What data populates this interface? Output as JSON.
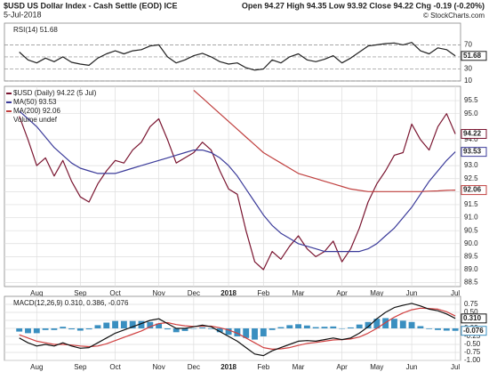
{
  "header": {
    "title": "$USD US Dollar Index - Cash Settle (EOD) ICE",
    "date": "5-Jul-2018",
    "quote": "Open 94.27 High 94.35 Low 93.92 Close 94.22 Chg -0.19 (-0.20%)",
    "credit": "© StockCharts.com"
  },
  "chart_data": [
    {
      "type": "line",
      "label": "RSI(14) 51.68",
      "xlim": [
        -1.7,
        50.6
      ],
      "ylim": [
        10,
        106
      ],
      "yticks": [
        10,
        30,
        50,
        70
      ],
      "grid": "dashed",
      "series": [
        {
          "color": "#222222",
          "end_box": true,
          "values": [
            58,
            45,
            40,
            48,
            42,
            50,
            41,
            38,
            36,
            48,
            55,
            60,
            55,
            60,
            62,
            68,
            70,
            50,
            40,
            45,
            52,
            56,
            50,
            42,
            38,
            40,
            32,
            28,
            30,
            45,
            40,
            50,
            55,
            45,
            42,
            46,
            52,
            40,
            48,
            58,
            68,
            70,
            72,
            73,
            70,
            74,
            60,
            55,
            65,
            62,
            51.68
          ]
        }
      ]
    },
    {
      "type": "line",
      "notes": [
        "Volume undef"
      ],
      "xlim": [
        -1.7,
        50.6
      ],
      "ylim": [
        88.35,
        96.05
      ],
      "grid": true,
      "yticks": [
        88.5,
        {
          "value": 89,
          "label": "89.0"
        },
        89.5,
        {
          "value": 90,
          "label": "90.0"
        },
        90.5,
        {
          "value": 91,
          "label": "91.0"
        },
        91.5,
        {
          "value": 92,
          "label": "92.0"
        },
        92.5,
        {
          "value": 93,
          "label": "93.0"
        },
        {
          "value": 94,
          "label": "94.0"
        },
        {
          "value": 95,
          "label": "95.0"
        },
        95.5
      ],
      "xticks": [
        {
          "value": 2,
          "label": "Aug"
        },
        {
          "value": 7,
          "label": "Sep"
        },
        {
          "value": 11,
          "label": "Oct"
        },
        {
          "value": 16,
          "label": "Nov"
        },
        {
          "value": 20,
          "label": "Dec"
        },
        {
          "value": 24,
          "label": "2018"
        },
        {
          "value": 28,
          "label": "Feb"
        },
        {
          "value": 32,
          "label": "Mar"
        },
        {
          "value": 37,
          "label": "Apr"
        },
        {
          "value": 41,
          "label": "May"
        },
        {
          "value": 45,
          "label": "Jun"
        },
        {
          "value": 50,
          "label": "Jul"
        }
      ],
      "series": [
        {
          "name": "$USD (Daily) 94.22 (5 Jul)",
          "color": "#7a1530",
          "end_box": true,
          "values": [
            94.9,
            94.0,
            93.0,
            93.3,
            92.6,
            93.2,
            92.4,
            91.8,
            91.6,
            92.3,
            92.8,
            93.2,
            93.1,
            93.6,
            93.9,
            94.5,
            94.8,
            94.0,
            93.1,
            93.3,
            93.5,
            93.9,
            93.6,
            92.8,
            92.1,
            91.9,
            90.5,
            89.3,
            89.0,
            89.7,
            89.4,
            89.9,
            90.3,
            89.8,
            89.5,
            89.7,
            90.1,
            89.3,
            89.8,
            90.6,
            91.6,
            92.3,
            92.8,
            93.4,
            93.5,
            94.6,
            94.0,
            93.6,
            94.5,
            95.0,
            94.22
          ]
        },
        {
          "name": "MA(50) 93.53",
          "color": "#3b3b9a",
          "end_box": true,
          "values": [
            95.1,
            94.8,
            94.5,
            94.1,
            93.7,
            93.4,
            93.1,
            92.9,
            92.8,
            92.7,
            92.7,
            92.7,
            92.8,
            92.9,
            93.0,
            93.1,
            93.2,
            93.3,
            93.4,
            93.5,
            93.6,
            93.6,
            93.5,
            93.3,
            93.0,
            92.6,
            92.1,
            91.6,
            91.1,
            90.7,
            90.4,
            90.2,
            90.0,
            89.9,
            89.8,
            89.7,
            89.7,
            89.7,
            89.7,
            89.7,
            89.8,
            90.0,
            90.3,
            90.6,
            91.0,
            91.4,
            91.9,
            92.4,
            92.8,
            93.2,
            93.53
          ]
        },
        {
          "name": "MA(200) 92.06",
          "color": "#c0403f",
          "end_box": true,
          "values": [
            null,
            null,
            null,
            null,
            null,
            null,
            null,
            null,
            null,
            null,
            null,
            null,
            null,
            null,
            null,
            null,
            null,
            null,
            null,
            null,
            95.9,
            95.6,
            95.3,
            95.0,
            94.7,
            94.4,
            94.1,
            93.8,
            93.5,
            93.3,
            93.1,
            92.9,
            92.7,
            92.6,
            92.5,
            92.4,
            92.3,
            92.2,
            92.1,
            92.05,
            92.0,
            92.0,
            92.0,
            92.0,
            92.0,
            92.0,
            92.0,
            92.02,
            92.03,
            92.05,
            92.06
          ]
        }
      ]
    },
    {
      "type": "line",
      "label": "MACD(12,26,9) 0.310, 0.386, -0.076",
      "xlim": [
        -1.7,
        50.6
      ],
      "ylim": [
        -1.0,
        1.0
      ],
      "grid": true,
      "yticks": [
        {
          "value": -1,
          "label": "-1.00"
        },
        -0.75,
        {
          "value": -0.5,
          "label": "-0.50"
        },
        -0.25,
        {
          "value": 0,
          "label": "0.00"
        },
        0.25,
        {
          "value": 0.5,
          "label": "0.50"
        },
        0.75
      ],
      "xticks": [
        {
          "value": 2,
          "label": "Aug"
        },
        {
          "value": 7,
          "label": "Sep"
        },
        {
          "value": 11,
          "label": "Oct"
        },
        {
          "value": 16,
          "label": "Nov"
        },
        {
          "value": 20,
          "label": "Dec"
        },
        {
          "value": 24,
          "label": "2018"
        },
        {
          "value": 28,
          "label": "Feb"
        },
        {
          "value": 32,
          "label": "Mar"
        },
        {
          "value": 37,
          "label": "Apr"
        },
        {
          "value": 41,
          "label": "May"
        },
        {
          "value": 45,
          "label": "Jun"
        },
        {
          "value": 50,
          "label": "Jul"
        }
      ],
      "series": [
        {
          "type": "bar",
          "color": "#3a8fc0",
          "end_box": true,
          "values": [
            -0.1,
            -0.15,
            -0.15,
            -0.05,
            -0.05,
            0.05,
            -0.03,
            -0.07,
            -0.03,
            0.1,
            0.18,
            0.23,
            0.23,
            0.23,
            0.23,
            0.2,
            0.15,
            -0.03,
            -0.12,
            -0.08,
            -0.01,
            0.03,
            -0.02,
            -0.12,
            -0.2,
            -0.25,
            -0.3,
            -0.35,
            -0.25,
            -0.05,
            0.04,
            0.1,
            0.13,
            0.09,
            0.04,
            0.05,
            0.06,
            0.0,
            0.03,
            0.12,
            0.2,
            0.3,
            0.32,
            0.3,
            0.24,
            0.2,
            0.07,
            -0.02,
            -0.05,
            -0.07,
            -0.076
          ]
        },
        {
          "color": "#d04040",
          "values": [
            -0.2,
            -0.3,
            -0.4,
            -0.45,
            -0.5,
            -0.5,
            -0.52,
            -0.55,
            -0.57,
            -0.55,
            -0.48,
            -0.38,
            -0.28,
            -0.18,
            -0.08,
            0.05,
            0.15,
            0.18,
            0.12,
            0.08,
            0.06,
            0.07,
            0.07,
            0.02,
            -0.05,
            -0.15,
            -0.3,
            -0.45,
            -0.6,
            -0.65,
            -0.64,
            -0.6,
            -0.53,
            -0.47,
            -0.44,
            -0.4,
            -0.36,
            -0.35,
            -0.33,
            -0.27,
            -0.15,
            0.0,
            0.18,
            0.35,
            0.48,
            0.58,
            0.63,
            0.62,
            0.6,
            0.52,
            0.386
          ]
        },
        {
          "color": "#111111",
          "end_box": true,
          "last_value_label": "0.310",
          "values": [
            -0.3,
            -0.45,
            -0.55,
            -0.5,
            -0.55,
            -0.45,
            -0.55,
            -0.62,
            -0.6,
            -0.45,
            -0.3,
            -0.15,
            -0.05,
            0.05,
            0.15,
            0.25,
            0.3,
            0.15,
            0.0,
            0.0,
            0.05,
            0.1,
            0.05,
            -0.1,
            -0.25,
            -0.4,
            -0.6,
            -0.8,
            -0.85,
            -0.7,
            -0.6,
            -0.5,
            -0.4,
            -0.38,
            -0.4,
            -0.35,
            -0.3,
            -0.35,
            -0.3,
            -0.15,
            0.05,
            0.3,
            0.5,
            0.65,
            0.72,
            0.78,
            0.7,
            0.6,
            0.55,
            0.45,
            0.31
          ]
        }
      ]
    }
  ]
}
